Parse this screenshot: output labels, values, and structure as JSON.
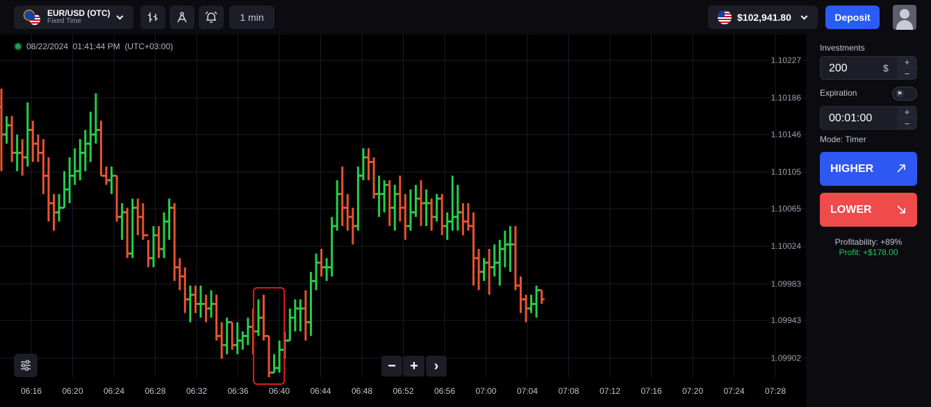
{
  "header": {
    "asset_name": "EUR/USD (OTC)",
    "asset_type": "Fixed Time",
    "timeframe": "1 min",
    "balance": "$102,941.80",
    "deposit_label": "Deposit"
  },
  "chart": {
    "timestamp": "08/22/2024  01:41:44 PM  (UTC+03:00)",
    "up_color": "#22d04a",
    "down_color": "#e8532e",
    "highlight_color": "#e01b1b",
    "zoom_out_label": "−",
    "zoom_in_label": "+",
    "next_label": "›"
  },
  "chart_data": {
    "type": "ohlc",
    "y_ticks": [
      "1.10227",
      "1.10186",
      "1.10146",
      "1.10105",
      "1.10065",
      "1.10024",
      "1.09983",
      "1.09943",
      "1.09902"
    ],
    "x_ticks": [
      "06:16",
      "06:20",
      "06:24",
      "06:28",
      "06:32",
      "06:36",
      "06:40",
      "06:44",
      "06:48",
      "06:52",
      "06:56",
      "07:00",
      "07:04",
      "07:08",
      "07:12",
      "07:16",
      "07:20",
      "07:24",
      "07:28"
    ],
    "ylim": [
      1.09881,
      1.10255
    ],
    "grid": true,
    "bars": [
      [
        1.10176,
        1.10196,
        1.10106,
        1.10146
      ],
      [
        1.10146,
        1.10166,
        1.10136,
        1.10156
      ],
      [
        1.10156,
        1.10166,
        1.10116,
        1.10126
      ],
      [
        1.10126,
        1.10146,
        1.10106,
        1.10126
      ],
      [
        1.10126,
        1.10141,
        1.10101,
        1.10121
      ],
      [
        1.10121,
        1.10181,
        1.10111,
        1.10151
      ],
      [
        1.10151,
        1.10161,
        1.10116,
        1.10136
      ],
      [
        1.10136,
        1.10146,
        1.10116,
        1.10126
      ],
      [
        1.10126,
        1.10141,
        1.10081,
        1.10101
      ],
      [
        1.10101,
        1.10121,
        1.10051,
        1.10071
      ],
      [
        1.10071,
        1.10081,
        1.10041,
        1.10061
      ],
      [
        1.10061,
        1.10081,
        1.10051,
        1.10066
      ],
      [
        1.10066,
        1.10106,
        1.10066,
        1.10086
      ],
      [
        1.10086,
        1.10121,
        1.10071,
        1.10101
      ],
      [
        1.10101,
        1.10131,
        1.10091,
        1.10106
      ],
      [
        1.10106,
        1.10141,
        1.10096,
        1.10126
      ],
      [
        1.10126,
        1.10151,
        1.10106,
        1.10136
      ],
      [
        1.10136,
        1.10171,
        1.10116,
        1.10146
      ],
      [
        1.10146,
        1.10191,
        1.10136,
        1.10151
      ],
      [
        1.10151,
        1.10161,
        1.10101,
        1.10101
      ],
      [
        1.10101,
        1.10111,
        1.10091,
        1.10096
      ],
      [
        1.10096,
        1.10111,
        1.10081,
        1.10101
      ],
      [
        1.10101,
        1.10101,
        1.10051,
        1.10056
      ],
      [
        1.10056,
        1.10071,
        1.10031,
        1.10061
      ],
      [
        1.10061,
        1.10066,
        1.10011,
        1.10016
      ],
      [
        1.10016,
        1.10076,
        1.10011,
        1.10066
      ],
      [
        1.10066,
        1.10076,
        1.10036,
        1.10056
      ],
      [
        1.10056,
        1.10071,
        1.10031,
        1.10036
      ],
      [
        1.10036,
        1.10031,
        1.10001,
        1.10011
      ],
      [
        1.10011,
        1.10046,
        1.10001,
        1.10036
      ],
      [
        1.10036,
        1.10046,
        1.10011,
        1.10021
      ],
      [
        1.10021,
        1.10061,
        1.10011,
        1.10051
      ],
      [
        1.10051,
        1.10076,
        1.10031,
        1.10066
      ],
      [
        1.10066,
        1.10071,
        1.09986,
        1.10001
      ],
      [
        1.10001,
        1.10011,
        1.09976,
        1.09991
      ],
      [
        1.09991,
        1.10001,
        1.09951,
        1.09966
      ],
      [
        1.09966,
        1.09981,
        1.09941,
        1.09971
      ],
      [
        1.09971,
        1.09981,
        1.09951,
        1.09961
      ],
      [
        1.09961,
        1.09981,
        1.09946,
        1.09961
      ],
      [
        1.09961,
        1.09971,
        1.09941,
        1.09956
      ],
      [
        1.09956,
        1.09976,
        1.09946,
        1.09961
      ],
      [
        1.09961,
        1.09971,
        1.09921,
        1.09926
      ],
      [
        1.09926,
        1.09941,
        1.09901,
        1.09916
      ],
      [
        1.09916,
        1.09946,
        1.09906,
        1.09941
      ],
      [
        1.09941,
        1.09941,
        1.09911,
        1.09916
      ],
      [
        1.09916,
        1.09941,
        1.09906,
        1.09921
      ],
      [
        1.09921,
        1.09931,
        1.09911,
        1.09926
      ],
      [
        1.09926,
        1.09946,
        1.09916,
        1.09936
      ],
      [
        1.09936,
        1.09956,
        1.09906,
        1.09931
      ],
      [
        1.09931,
        1.09966,
        1.09926,
        1.09946
      ],
      [
        1.09946,
        1.09971,
        1.09921,
        1.09926
      ],
      [
        1.09926,
        1.09926,
        1.09881,
        1.09886
      ],
      [
        1.09886,
        1.09906,
        1.09886,
        1.09891
      ],
      [
        1.09891,
        1.09921,
        1.09886,
        1.09911
      ],
      [
        1.09911,
        1.09931,
        1.09901,
        1.09921
      ],
      [
        1.09921,
        1.09956,
        1.09921,
        1.09946
      ],
      [
        1.09946,
        1.09966,
        1.09931,
        1.09956
      ],
      [
        1.09956,
        1.09966,
        1.09931,
        1.09956
      ],
      [
        1.09956,
        1.09976,
        1.09921,
        1.09941
      ],
      [
        1.09941,
        1.09996,
        1.09926,
        1.09986
      ],
      [
        1.09986,
        1.10016,
        1.09976,
        1.10006
      ],
      [
        1.10006,
        1.10021,
        1.09991,
        1.10001
      ],
      [
        1.10001,
        1.10011,
        1.09986,
        1.10001
      ],
      [
        1.10001,
        1.10056,
        1.09991,
        1.10046
      ],
      [
        1.10046,
        1.10096,
        1.10041,
        1.10081
      ],
      [
        1.10081,
        1.10111,
        1.10046,
        1.10066
      ],
      [
        1.10066,
        1.10081,
        1.10041,
        1.10056
      ],
      [
        1.10056,
        1.10066,
        1.10026,
        1.10046
      ],
      [
        1.10046,
        1.10111,
        1.10041,
        1.10101
      ],
      [
        1.10101,
        1.10131,
        1.10096,
        1.10121
      ],
      [
        1.10121,
        1.10131,
        1.10096,
        1.10116
      ],
      [
        1.10116,
        1.10121,
        1.10076,
        1.10081
      ],
      [
        1.10081,
        1.10101,
        1.10056,
        1.10081
      ],
      [
        1.10081,
        1.10096,
        1.10061,
        1.10091
      ],
      [
        1.10091,
        1.10096,
        1.10046,
        1.10066
      ],
      [
        1.10066,
        1.10091,
        1.10041,
        1.10081
      ],
      [
        1.10081,
        1.10101,
        1.10051,
        1.10066
      ],
      [
        1.10066,
        1.10081,
        1.10031,
        1.10046
      ],
      [
        1.10046,
        1.10086,
        1.10041,
        1.10061
      ],
      [
        1.10061,
        1.10091,
        1.10056,
        1.10076
      ],
      [
        1.10076,
        1.10096,
        1.10046,
        1.10071
      ],
      [
        1.10071,
        1.10086,
        1.10046,
        1.10071
      ],
      [
        1.10071,
        1.10076,
        1.10041,
        1.10056
      ],
      [
        1.10056,
        1.10081,
        1.10051,
        1.10076
      ],
      [
        1.10076,
        1.10081,
        1.10036,
        1.10046
      ],
      [
        1.10046,
        1.10061,
        1.10031,
        1.10051
      ],
      [
        1.10051,
        1.10101,
        1.10041,
        1.10056
      ],
      [
        1.10056,
        1.10091,
        1.10041,
        1.10061
      ],
      [
        1.10061,
        1.10071,
        1.10036,
        1.10051
      ],
      [
        1.10051,
        1.10071,
        1.10041,
        1.10046
      ],
      [
        1.10046,
        1.10061,
        1.09981,
        1.10011
      ],
      [
        1.10011,
        1.10021,
        1.09976,
        1.09996
      ],
      [
        1.09996,
        1.10011,
        1.09986,
        1.10006
      ],
      [
        1.10006,
        1.10021,
        1.09971,
        1.10001
      ],
      [
        1.10001,
        1.10026,
        1.09991,
        1.10006
      ],
      [
        1.10006,
        1.10031,
        1.09981,
        1.10021
      ],
      [
        1.10021,
        1.10041,
        1.10001,
        1.10026
      ],
      [
        1.10026,
        1.10046,
        1.09996,
        1.10026
      ],
      [
        1.10026,
        1.10046,
        1.09976,
        1.09981
      ],
      [
        1.09981,
        1.09991,
        1.09951,
        1.09966
      ],
      [
        1.09966,
        1.09971,
        1.09941,
        1.09956
      ],
      [
        1.09956,
        1.09971,
        1.09951,
        1.09961
      ],
      [
        1.09961,
        1.09981,
        1.09946,
        1.09976
      ],
      [
        1.09976,
        1.09976,
        1.09961,
        1.09966
      ]
    ],
    "highlight_bars": [
      49,
      53
    ]
  },
  "panel": {
    "investments_label": "Investments",
    "investment_value": "200",
    "currency": "$",
    "plus": "+",
    "minus": "−",
    "expiration_label": "Expiration",
    "expiration_value": "00:01:00",
    "mode_text": "Mode: Timer",
    "higher_label": "HIGHER",
    "lower_label": "LOWER",
    "profitability_text": "Profitability: +89%",
    "profit_text": "Profit: +$178.00"
  }
}
